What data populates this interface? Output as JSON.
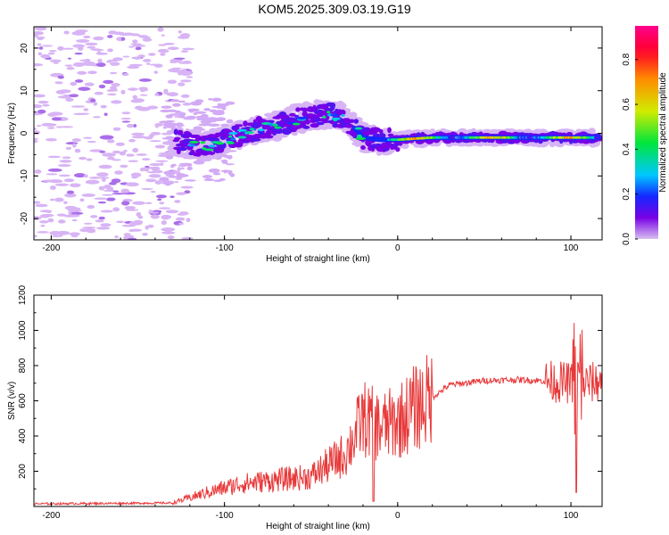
{
  "title": "KOM5.2025.309.03.19.G19",
  "chart_data": [
    {
      "type": "heatmap",
      "name": "spectrogram",
      "xlabel": "Height of straight line (km)",
      "ylabel": "Frequency (Hz)",
      "xlim": [
        -210,
        118
      ],
      "ylim": [
        -25,
        25
      ],
      "xticks": [
        -200,
        -100,
        0,
        100
      ],
      "yticks": [
        -20,
        -10,
        0,
        10,
        20
      ],
      "colorbar": {
        "label": "Normalized spectral amplitude",
        "range": [
          0,
          0.95
        ],
        "ticks": [
          "0.0",
          "0.2",
          "0.4",
          "0.6",
          "0.8"
        ],
        "tick_values": [
          0.0,
          0.2,
          0.4,
          0.6,
          0.8
        ]
      },
      "ridge": {
        "description_points_x": [
          -125,
          -110,
          -100,
          -90,
          -80,
          -70,
          -60,
          -50,
          -40,
          -30,
          -20,
          -10,
          0,
          20,
          40,
          60,
          80,
          100,
          112
        ],
        "description_points_freq": [
          -2,
          -3,
          -2,
          0,
          1,
          2,
          3,
          4,
          4.5,
          3.5,
          -1,
          -1.5,
          -1.5,
          -1,
          -1,
          -1,
          -1,
          -1,
          -1
        ]
      }
    },
    {
      "type": "line",
      "name": "snr",
      "xlabel": "Height of straight line (km)",
      "ylabel": "SNR (v/v)",
      "xlim": [
        -210,
        118
      ],
      "ylim": [
        0,
        1200
      ],
      "xticks": [
        -200,
        -100,
        0,
        100
      ],
      "yticks": [
        200,
        400,
        600,
        800,
        1000,
        1200
      ],
      "color": "#e8393a",
      "envelope_x": [
        -210,
        -130,
        -110,
        -90,
        -70,
        -50,
        -30,
        -20,
        -10,
        0,
        10,
        20,
        30,
        50,
        70,
        90,
        100,
        105,
        110,
        118
      ],
      "envelope_y": [
        15,
        20,
        80,
        130,
        150,
        170,
        300,
        500,
        450,
        480,
        560,
        620,
        690,
        715,
        720,
        710,
        700,
        700,
        700,
        710
      ]
    }
  ]
}
